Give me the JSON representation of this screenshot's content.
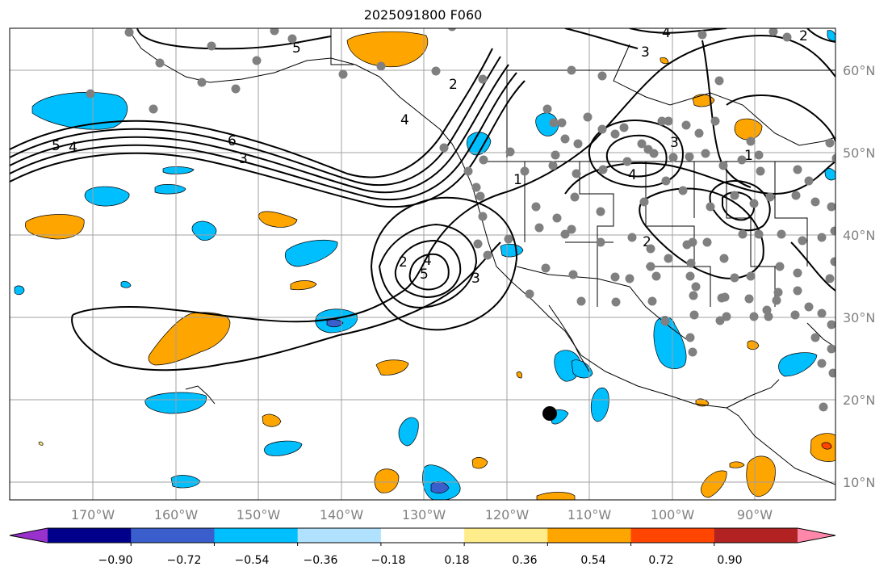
{
  "title": "2025091800 F060",
  "lon_labels": [
    "170°W",
    "160°W",
    "150°W",
    "140°W",
    "130°W",
    "120°W",
    "110°W",
    "100°W",
    "90°W"
  ],
  "lat_labels": [
    "60°N",
    "50°N",
    "40°N",
    "30°N",
    "20°N",
    "10°N"
  ],
  "contour_labels": [
    "5",
    "4",
    "6",
    "3",
    "5",
    "4",
    "2",
    "1",
    "3",
    "2",
    "4",
    "5",
    "3",
    "2",
    "1",
    "3",
    "4",
    "4",
    "2"
  ],
  "colorbar": {
    "ticks": [
      "−0.90",
      "−0.72",
      "−0.54",
      "−0.36",
      "−0.18",
      "0.18",
      "0.36",
      "0.54",
      "0.72",
      "0.90"
    ],
    "colors": [
      "#9932cc",
      "#00008b",
      "#3a5fcd",
      "#00bfff",
      "#b0e2ff",
      "#ffffff",
      "#ffec8b",
      "#ffa500",
      "#ff4500",
      "#b22222",
      "#ff88aa"
    ]
  },
  "colors": {
    "coast": "#000000",
    "grid": "#a0a0a0",
    "station": "#808080"
  }
}
